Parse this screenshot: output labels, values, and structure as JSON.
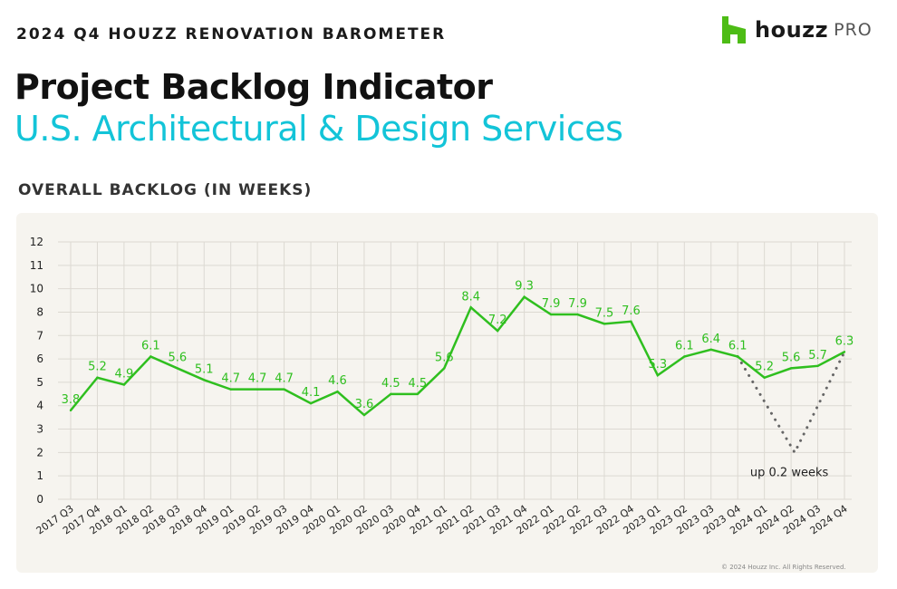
{
  "header": {
    "tag": "2024 Q4 HOUZZ RENOVATION BAROMETER",
    "logo_word": "houzz",
    "logo_pro": "PRO",
    "brand_color": "#4dbc15"
  },
  "titles": {
    "main": "Project Backlog Indicator",
    "sub": "U.S. Architectural & Design Services",
    "sub_color": "#13c4d8"
  },
  "chart_heading": "OVERALL BACKLOG (IN WEEKS)",
  "copyright": "© 2024 Houzz Inc. All Rights Reserved.",
  "chart_data": {
    "type": "line",
    "title": "",
    "xlabel": "",
    "ylabel": "",
    "y_tick_labels": [
      "0",
      "1",
      "2",
      "3",
      "4",
      "5",
      "6",
      "7",
      "8",
      "10",
      "11",
      "12"
    ],
    "categories": [
      "2017 Q3",
      "2017 Q4",
      "2018 Q1",
      "2018 Q2",
      "2018 Q3",
      "2018 Q4",
      "2019 Q1",
      "2019 Q2",
      "2019 Q3",
      "2019 Q4",
      "2020 Q1",
      "2020 Q2",
      "2020 Q3",
      "2020 Q4",
      "2021 Q1",
      "2021 Q2",
      "2021 Q3",
      "2021 Q4",
      "2022 Q1",
      "2022 Q2",
      "2022 Q3",
      "2022 Q4",
      "2023 Q1",
      "2023 Q2",
      "2023 Q3",
      "2023 Q4",
      "2024 Q1",
      "2024 Q2",
      "2024 Q3",
      "2024 Q4"
    ],
    "series": [
      {
        "values": [
          3.8,
          5.2,
          4.9,
          6.1,
          5.6,
          5.1,
          4.7,
          4.7,
          4.7,
          4.1,
          4.6,
          3.6,
          4.5,
          4.5,
          5.6,
          8.4,
          7.2,
          9.3,
          7.9,
          7.9,
          7.5,
          7.6,
          5.3,
          6.1,
          6.4,
          6.1,
          5.2,
          5.6,
          5.7,
          6.3
        ],
        "color": "#2fbf1f"
      }
    ],
    "annotation": {
      "text": "up 0.2 weeks",
      "from": "2023 Q4",
      "to": "2024 Q4",
      "style": "dotted V"
    },
    "grid": true,
    "legend": "none"
  }
}
